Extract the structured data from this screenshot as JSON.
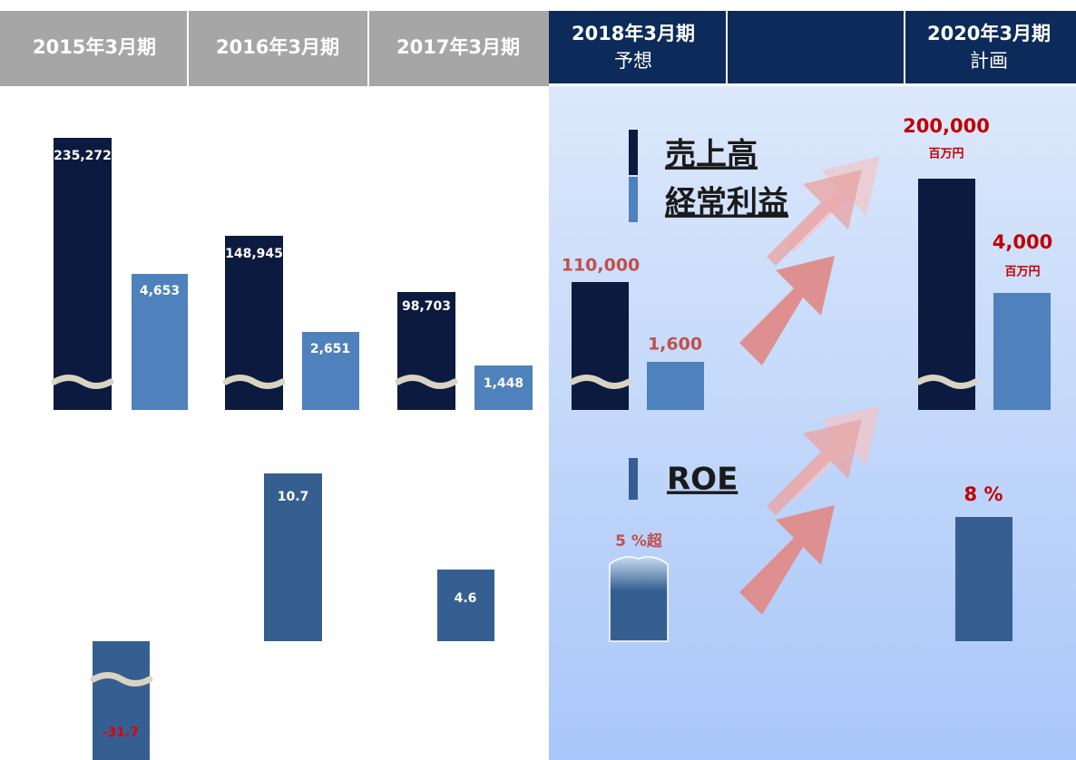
{
  "header": {
    "columns": [
      [
        "2015年3月期"
      ],
      [
        "2016年3月期"
      ],
      [
        "2017年3月期"
      ],
      [
        "2018年3月期",
        "予想"
      ],
      [
        "2020年3月期",
        "計画"
      ]
    ]
  },
  "legend": {
    "sales": "売上高",
    "profit": "経常利益",
    "roe": "ROE"
  },
  "sales": [
    "235,272",
    "148,945",
    "98,703",
    "110,000",
    "200,000"
  ],
  "profit": [
    "4,653",
    "2,651",
    "1,448",
    "1,600",
    "4,000"
  ],
  "roe": [
    "-31.7",
    "10.7",
    "4.6",
    "5 %超",
    "8 %"
  ],
  "unit": "百万円"
}
